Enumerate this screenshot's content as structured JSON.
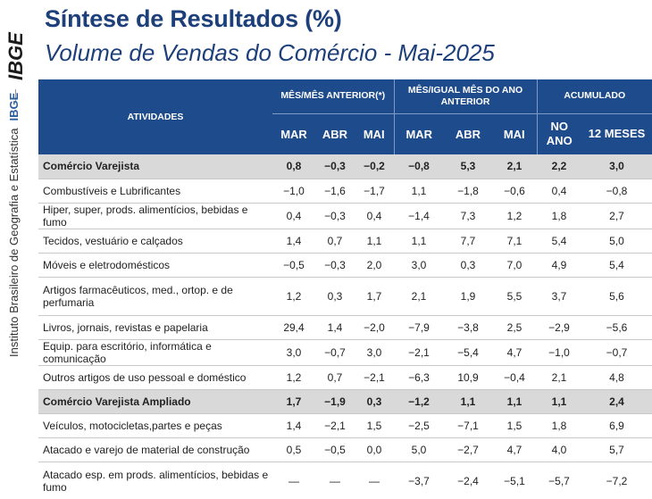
{
  "brand": {
    "logo_text": "IBGE",
    "caption": "Instituto Brasileiro de Geografia e Estatística",
    "caption_abbr": "IBGE",
    "colors": {
      "header_bg": "#1e4b8c",
      "title": "#1d3f7a",
      "highlight_row": "#d9d9d9"
    }
  },
  "title": "Síntese de Resultados (%)",
  "subtitle": "Volume de Vendas do Comércio - Mai-2025",
  "table": {
    "header": {
      "activities": "ATIVIDADES",
      "group1": "MÊS/MÊS ANTERIOR(*)",
      "group2": "MÊS/IGUAL MÊS DO ANO ANTERIOR",
      "group3": "ACUMULADO",
      "cols": [
        "MAR",
        "ABR",
        "MAI",
        "MAR",
        "ABR",
        "MAI",
        "NO ANO",
        "12 MESES"
      ]
    },
    "rows": [
      {
        "name": "Comércio Varejista",
        "values": [
          "0,8",
          "−0,3",
          "−0,2",
          "−0,8",
          "5,3",
          "2,1",
          "2,2",
          "3,0"
        ],
        "bold": true,
        "tall": false
      },
      {
        "name": "Combustíveis e Lubrificantes",
        "values": [
          "−1,0",
          "−1,6",
          "−1,7",
          "1,1",
          "−1,8",
          "−0,6",
          "0,4",
          "−0,8"
        ],
        "bold": false,
        "tall": false
      },
      {
        "name": "Hiper, super, prods. alimentícios, bebidas e fumo",
        "values": [
          "0,4",
          "−0,3",
          "0,4",
          "−1,4",
          "7,3",
          "1,2",
          "1,8",
          "2,7"
        ],
        "bold": false,
        "tall": false
      },
      {
        "name": "Tecidos, vestuário e calçados",
        "values": [
          "1,4",
          "0,7",
          "1,1",
          "1,1",
          "7,7",
          "7,1",
          "5,4",
          "5,0"
        ],
        "bold": false,
        "tall": false
      },
      {
        "name": "Móveis e eletrodomésticos",
        "values": [
          "−0,5",
          "−0,3",
          "2,0",
          "3,0",
          "0,3",
          "7,0",
          "4,9",
          "5,4"
        ],
        "bold": false,
        "tall": false
      },
      {
        "name": "Artigos farmacêuticos, med., ortop. e de perfumaria",
        "values": [
          "1,2",
          "0,3",
          "1,7",
          "2,1",
          "1,9",
          "5,5",
          "3,7",
          "5,6"
        ],
        "bold": false,
        "tall": true
      },
      {
        "name": "Livros, jornais, revistas e papelaria",
        "values": [
          "29,4",
          "1,4",
          "−2,0",
          "−7,9",
          "−3,8",
          "2,5",
          "−2,9",
          "−5,6"
        ],
        "bold": false,
        "tall": false
      },
      {
        "name": "Equip. para escritório, informática e comunicação",
        "values": [
          "3,0",
          "−0,7",
          "3,0",
          "−2,1",
          "−5,4",
          "4,7",
          "−1,0",
          "−0,7"
        ],
        "bold": false,
        "tall": false
      },
      {
        "name": "Outros artigos de uso pessoal e doméstico",
        "values": [
          "1,2",
          "0,7",
          "−2,1",
          "−6,3",
          "10,9",
          "−0,4",
          "2,1",
          "4,8"
        ],
        "bold": false,
        "tall": false
      },
      {
        "name": "Comércio Varejista Ampliado",
        "values": [
          "1,7",
          "−1,9",
          "0,3",
          "−1,2",
          "1,1",
          "1,1",
          "1,1",
          "2,4"
        ],
        "bold": true,
        "tall": false
      },
      {
        "name": "Veículos, motocicletas,partes e peças",
        "values": [
          "1,4",
          "−2,1",
          "1,5",
          "−2,5",
          "−7,1",
          "1,5",
          "1,8",
          "6,9"
        ],
        "bold": false,
        "tall": false
      },
      {
        "name": "Atacado e varejo de material de construção",
        "values": [
          "0,5",
          "−0,5",
          "0,0",
          "5,0",
          "−2,7",
          "4,7",
          "4,0",
          "5,7"
        ],
        "bold": false,
        "tall": false
      },
      {
        "name": "Atacado esp. em prods. alimentícios, bebidas e fumo",
        "values": [
          "—",
          "—",
          "—",
          "−3,7",
          "−2,4",
          "−5,1",
          "−5,7",
          "−7,2"
        ],
        "bold": false,
        "tall": true
      }
    ]
  }
}
